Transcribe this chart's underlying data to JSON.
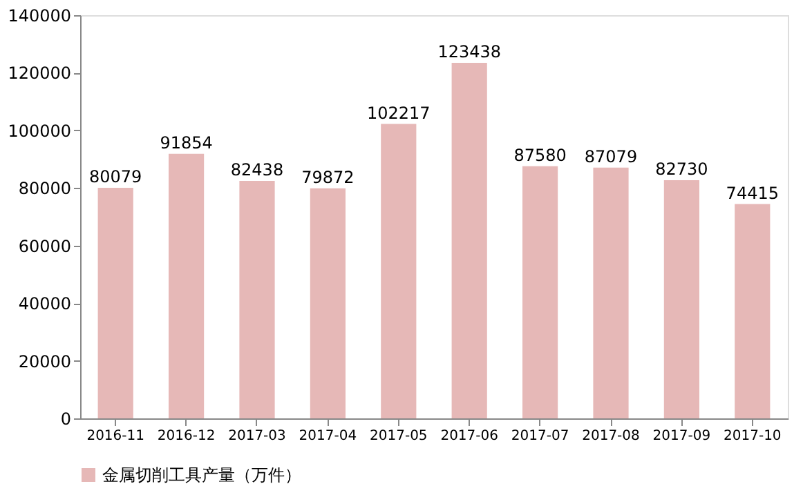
{
  "chart_data": {
    "type": "bar",
    "categories": [
      "2016-11",
      "2016-12",
      "2017-03",
      "2017-04",
      "2017-05",
      "2017-06",
      "2017-07",
      "2017-08",
      "2017-09",
      "2017-10"
    ],
    "series": [
      {
        "name": "金属切削工具产量（万件）",
        "color": "#e6b8b7",
        "values": [
          80079,
          91854,
          82438,
          79872,
          102217,
          123438,
          87580,
          87079,
          82730,
          74415
        ]
      }
    ],
    "ylim": [
      0,
      140000
    ],
    "yticks": [
      0,
      20000,
      40000,
      60000,
      80000,
      100000,
      120000,
      140000
    ],
    "data_labels": true,
    "grid": false,
    "legend": "bottom"
  }
}
